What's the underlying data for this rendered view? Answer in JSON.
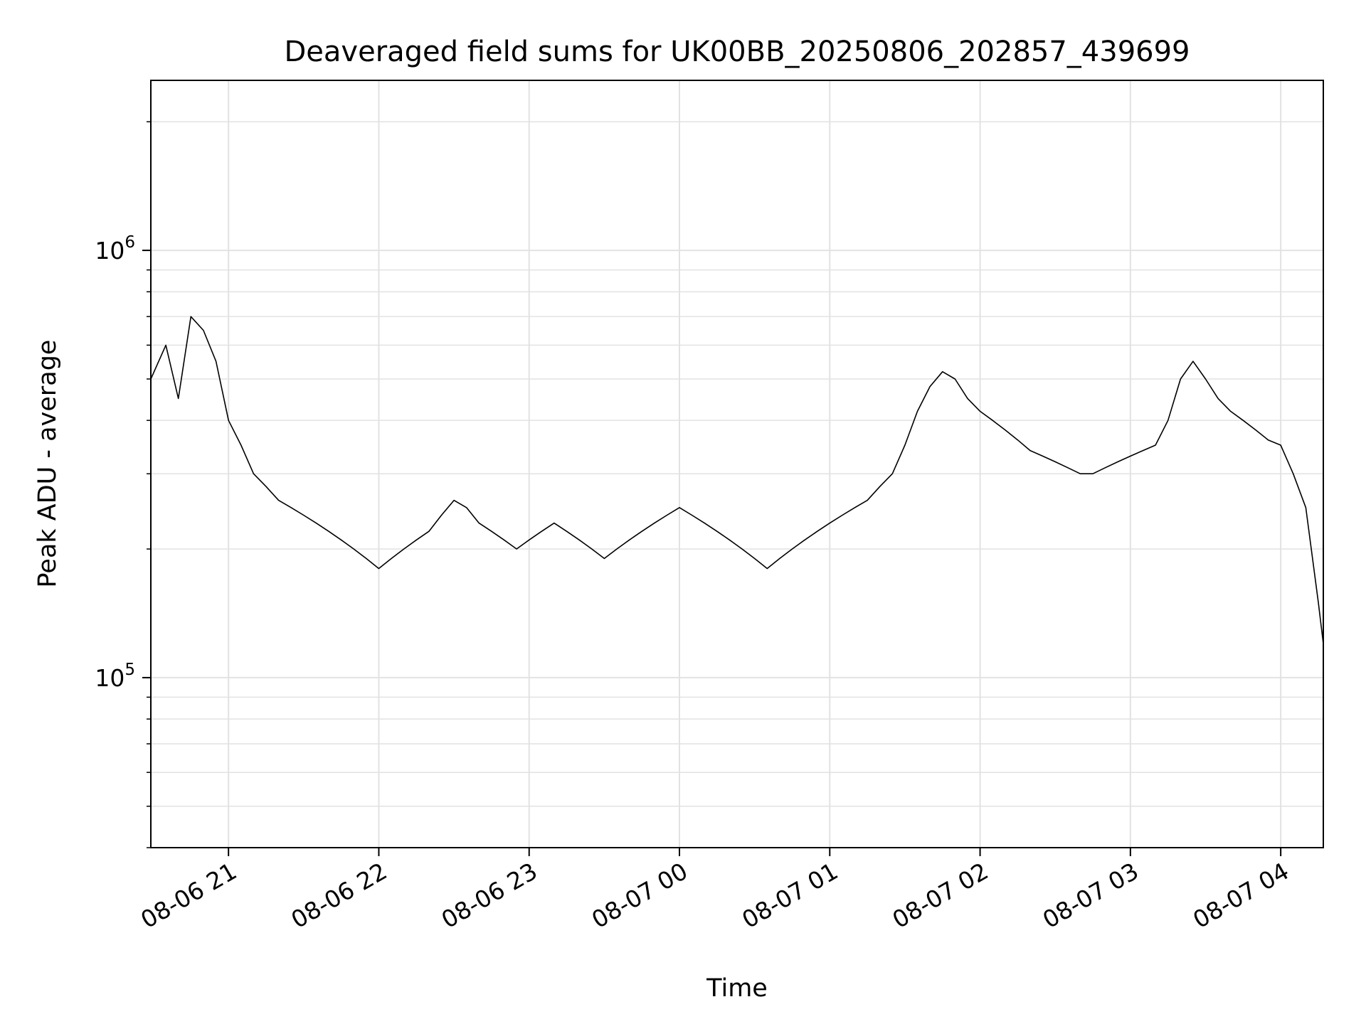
{
  "chart_data": {
    "type": "line",
    "title": "Deaveraged field sums for UK00BB_20250806_202857_439699",
    "xlabel": "Time",
    "ylabel": "Peak ADU - average",
    "yscale": "log",
    "grid": true,
    "xlim": [
      "2025-08-06 20:29",
      "2025-08-07 04:17"
    ],
    "ylim": [
      40000,
      2500000
    ],
    "x_ticks": [
      "08-06 21",
      "08-06 22",
      "08-06 23",
      "08-07 00",
      "08-07 01",
      "08-07 02",
      "08-07 03",
      "08-07 04"
    ],
    "y_ticks": [
      {
        "value": 100000,
        "base": "10",
        "exp": "5"
      },
      {
        "value": 1000000,
        "base": "10",
        "exp": "6"
      }
    ],
    "line_color": "#000000",
    "series": [
      {
        "name": "",
        "x": [
          "2025-08-06 20:29",
          "2025-08-06 20:35",
          "2025-08-06 20:40",
          "2025-08-06 20:45",
          "2025-08-06 20:50",
          "2025-08-06 20:55",
          "2025-08-06 21:00",
          "2025-08-06 21:05",
          "2025-08-06 21:10",
          "2025-08-06 21:15",
          "2025-08-06 21:20",
          "2025-08-06 21:25",
          "2025-08-06 21:30",
          "2025-08-06 21:35",
          "2025-08-06 21:40",
          "2025-08-06 21:45",
          "2025-08-06 21:50",
          "2025-08-06 21:55",
          "2025-08-06 22:00",
          "2025-08-06 22:05",
          "2025-08-06 22:10",
          "2025-08-06 22:15",
          "2025-08-06 22:20",
          "2025-08-06 22:25",
          "2025-08-06 22:30",
          "2025-08-06 22:35",
          "2025-08-06 22:40",
          "2025-08-06 22:45",
          "2025-08-06 22:50",
          "2025-08-06 22:55",
          "2025-08-06 23:00",
          "2025-08-06 23:05",
          "2025-08-06 23:10",
          "2025-08-06 23:15",
          "2025-08-06 23:20",
          "2025-08-06 23:25",
          "2025-08-06 23:30",
          "2025-08-06 23:35",
          "2025-08-06 23:40",
          "2025-08-06 23:45",
          "2025-08-06 23:50",
          "2025-08-06 23:55",
          "2025-08-07 00:00",
          "2025-08-07 00:05",
          "2025-08-07 00:10",
          "2025-08-07 00:15",
          "2025-08-07 00:20",
          "2025-08-07 00:25",
          "2025-08-07 00:30",
          "2025-08-07 00:35",
          "2025-08-07 00:40",
          "2025-08-07 00:45",
          "2025-08-07 00:50",
          "2025-08-07 00:55",
          "2025-08-07 01:00",
          "2025-08-07 01:05",
          "2025-08-07 01:10",
          "2025-08-07 01:15",
          "2025-08-07 01:20",
          "2025-08-07 01:25",
          "2025-08-07 01:30",
          "2025-08-07 01:35",
          "2025-08-07 01:40",
          "2025-08-07 01:45",
          "2025-08-07 01:50",
          "2025-08-07 01:55",
          "2025-08-07 02:00",
          "2025-08-07 02:05",
          "2025-08-07 02:10",
          "2025-08-07 02:15",
          "2025-08-07 02:20",
          "2025-08-07 02:25",
          "2025-08-07 02:30",
          "2025-08-07 02:35",
          "2025-08-07 02:40",
          "2025-08-07 02:45",
          "2025-08-07 02:50",
          "2025-08-07 02:55",
          "2025-08-07 03:00",
          "2025-08-07 03:05",
          "2025-08-07 03:10",
          "2025-08-07 03:15",
          "2025-08-07 03:20",
          "2025-08-07 03:25",
          "2025-08-07 03:30",
          "2025-08-07 03:35",
          "2025-08-07 03:40",
          "2025-08-07 03:45",
          "2025-08-07 03:50",
          "2025-08-07 03:55",
          "2025-08-07 04:00",
          "2025-08-07 04:05",
          "2025-08-07 04:10",
          "2025-08-07 04:15",
          "2025-08-07 04:17"
        ],
        "y": [
          500000,
          600000,
          450000,
          700000,
          650000,
          550000,
          400000,
          350000,
          300000,
          280000,
          260000,
          250000,
          240000,
          230000,
          220000,
          210000,
          200000,
          190000,
          180000,
          190000,
          200000,
          210000,
          220000,
          240000,
          260000,
          250000,
          230000,
          220000,
          210000,
          200000,
          210000,
          220000,
          230000,
          220000,
          210000,
          200000,
          190000,
          200000,
          210000,
          220000,
          230000,
          240000,
          250000,
          240000,
          230000,
          220000,
          210000,
          200000,
          190000,
          180000,
          190000,
          200000,
          210000,
          220000,
          230000,
          240000,
          250000,
          260000,
          280000,
          300000,
          350000,
          420000,
          480000,
          520000,
          500000,
          450000,
          420000,
          400000,
          380000,
          360000,
          340000,
          330000,
          320000,
          310000,
          300000,
          300000,
          310000,
          320000,
          330000,
          340000,
          350000,
          400000,
          500000,
          550000,
          500000,
          450000,
          420000,
          400000,
          380000,
          360000,
          350000,
          300000,
          250000,
          150000,
          120000
        ]
      }
    ]
  }
}
